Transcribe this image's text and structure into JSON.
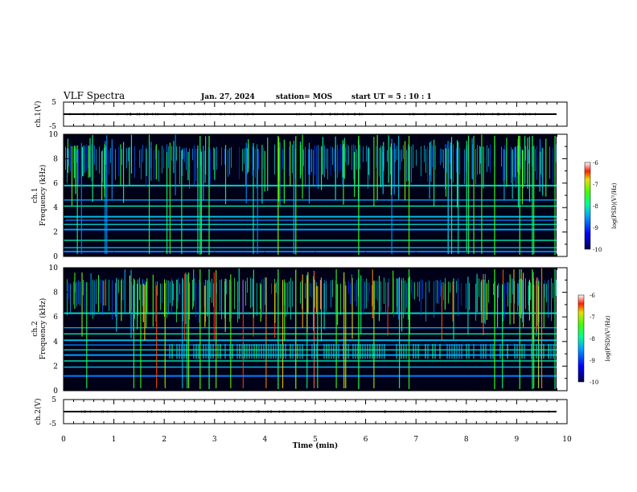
{
  "header": {
    "title": "VLF Spectra",
    "date": "Jan. 27, 2024",
    "station": "station= MOS",
    "start": "start  UT  =   5  : 10 : 1"
  },
  "chart_data": [
    {
      "type": "line",
      "panel": "ch1-waveform",
      "ylabel": "ch.1(V)",
      "ylim": [
        -5,
        5
      ],
      "yticks": [
        "5",
        "-5"
      ],
      "x": [
        0,
        10
      ],
      "series": [
        {
          "values": [
            0,
            0
          ]
        }
      ]
    },
    {
      "type": "heatmap",
      "panel": "ch1-spectrogram",
      "ylabel": [
        "ch.1",
        "Frequency (kHz)"
      ],
      "ylim": [
        0,
        10
      ],
      "yticks": [
        "0",
        "2",
        "4",
        "6",
        "8",
        "10"
      ],
      "xlim": [
        0,
        10
      ],
      "colorbar": {
        "label": "log(PSD)(V²/Hz)",
        "ticks": [
          "-6",
          "-7",
          "-8",
          "-9",
          "-10"
        ],
        "range": [
          -10,
          -6
        ]
      },
      "bands_khz": [
        0.4,
        0.7,
        1.3,
        2.2,
        2.6,
        2.95,
        3.25,
        4.1,
        4.6,
        5.8
      ]
    },
    {
      "type": "heatmap",
      "panel": "ch2-spectrogram",
      "ylabel": [
        "ch.2",
        "Frequency (kHz)"
      ],
      "ylim": [
        0,
        10
      ],
      "yticks": [
        "0",
        "2",
        "4",
        "6",
        "8",
        "10"
      ],
      "xlim": [
        0,
        10
      ],
      "colorbar": {
        "label": "log(PSD)(V²/Hz)",
        "ticks": [
          "-6",
          "-7",
          "-8",
          "-9",
          "-10"
        ],
        "range": [
          -10,
          -6
        ]
      },
      "bands_khz": [
        1.2,
        1.9,
        2.4,
        2.9,
        3.3,
        3.7,
        4.1,
        4.6,
        5.1,
        6.3
      ]
    },
    {
      "type": "line",
      "panel": "ch2-waveform",
      "ylabel": "ch.2(V)",
      "ylim": [
        -5,
        5
      ],
      "yticks": [
        "5",
        "-5"
      ],
      "x": [
        0,
        10
      ],
      "series": [
        {
          "values": [
            0,
            0
          ]
        }
      ]
    }
  ],
  "xaxis": {
    "label": "Time (min)",
    "ticks": [
      "0",
      "1",
      "2",
      "3",
      "4",
      "5",
      "6",
      "7",
      "8",
      "9",
      "10"
    ]
  }
}
